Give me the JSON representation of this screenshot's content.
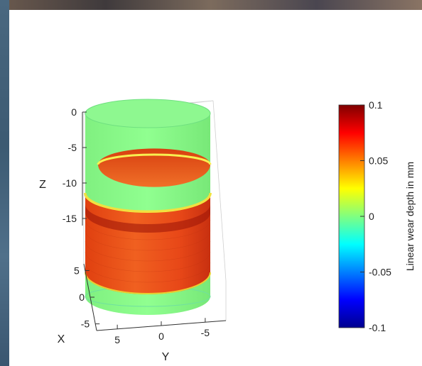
{
  "chart_data": {
    "type": "surface3d",
    "description_free": true,
    "axes": {
      "z": {
        "label": "Z",
        "ticks": [
          "0",
          "-5",
          "-10",
          "-15"
        ],
        "range": [
          -20,
          0
        ]
      },
      "x": {
        "label": "X",
        "ticks": [
          "5",
          "0",
          "-5"
        ],
        "range": [
          -7,
          7
        ]
      },
      "y": {
        "label": "Y",
        "ticks": [
          "5",
          "0",
          "-5"
        ],
        "range": [
          -7,
          7
        ]
      }
    },
    "surface": {
      "shape": "cylinder",
      "bands": [
        {
          "z_from": 0,
          "z_to": -5.5,
          "wear_mm": 0.0
        },
        {
          "z_from": -5.5,
          "z_to": -6.5,
          "wear_mm": 0.035
        },
        {
          "z_from": -6.5,
          "z_to": -13.5,
          "wear_mm": 0.0
        },
        {
          "z_from": -13.5,
          "z_to": -14.5,
          "wear_mm": 0.04
        },
        {
          "z_from": -14.5,
          "z_to": -17,
          "wear_mm": 0.085
        },
        {
          "z_from": -17,
          "z_to": -24,
          "wear_mm": 0.07
        },
        {
          "z_from": -24,
          "z_to": -27,
          "wear_mm": 0.0
        }
      ]
    },
    "colorbar": {
      "label": "Linear wear depth in mm",
      "ticks": [
        "0.1",
        "0.05",
        "0",
        "-0.05",
        "-0.1"
      ],
      "range": [
        -0.1,
        0.1
      ],
      "colormap": "jet"
    }
  }
}
